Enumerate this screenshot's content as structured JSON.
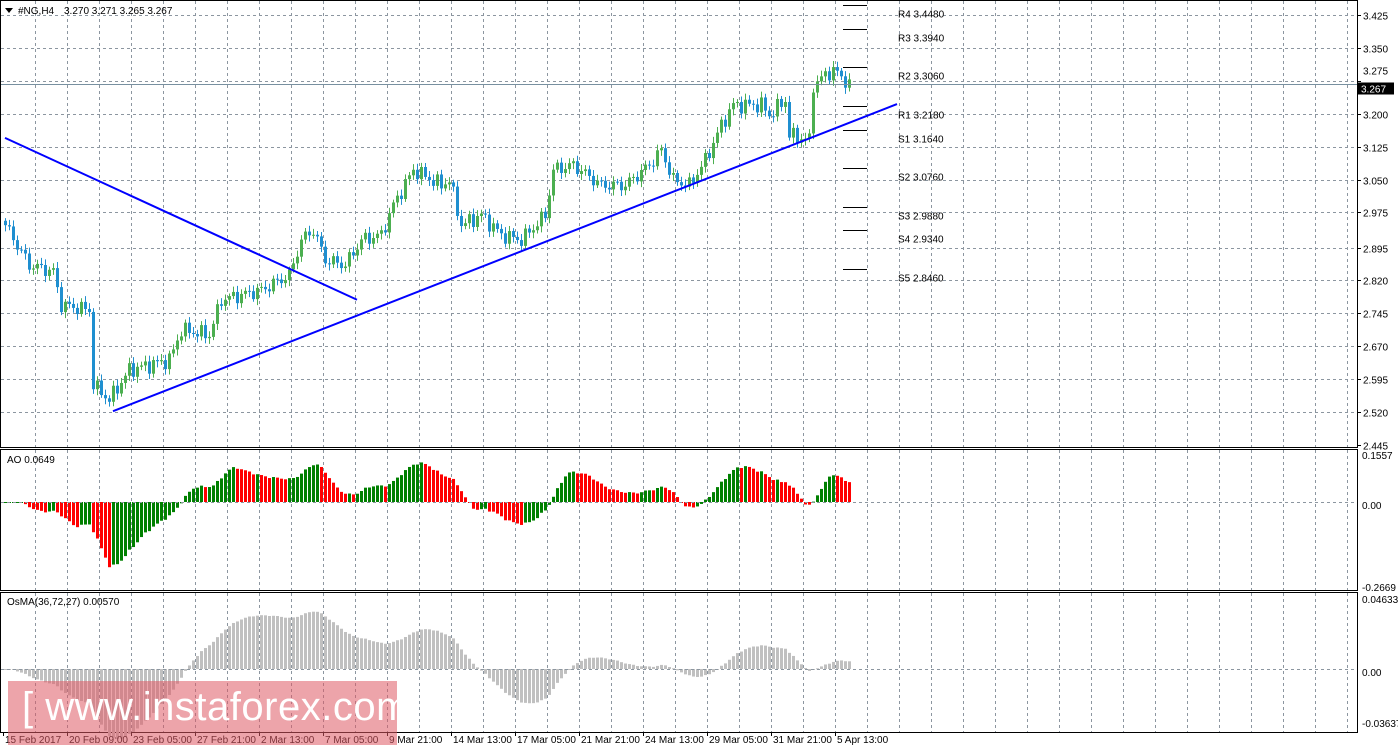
{
  "header": {
    "symbol": "#NG,H4",
    "ohlc": "3.270 3.271 3.265 3.267"
  },
  "colors": {
    "bull": "#4caf50",
    "bear": "#1f8fd0",
    "trendline": "#0000ff",
    "ao_up": "#008000",
    "ao_down": "#ff0000",
    "osma": "#c0c0c0"
  },
  "chart_data": {
    "type": "candlestick",
    "price_axis": {
      "ticks": [
        "3.425",
        "3.350",
        "3.275",
        "3.200",
        "3.125",
        "3.050",
        "2.975",
        "2.895",
        "2.820",
        "2.745",
        "2.670",
        "2.595",
        "2.520",
        "2.445"
      ],
      "ylim": [
        2.445,
        3.425
      ],
      "current": "3.267"
    },
    "x_labels": [
      "15 Feb 2017",
      "20 Feb 09:00",
      "23 Feb 05:00",
      "27 Feb 21:00",
      "2 Mar 13:00",
      "7 Mar 05:00",
      "9 Mar 21:00",
      "14 Mar 13:00",
      "17 Mar 05:00",
      "21 Mar 21:00",
      "24 Mar 13:00",
      "29 Mar 05:00",
      "31 Mar 21:00",
      "5 Apr 13:00"
    ],
    "candle_count": 212,
    "close_anchors": [
      [
        0,
        2.946
      ],
      [
        6,
        2.855
      ],
      [
        12,
        2.84
      ],
      [
        14,
        2.764
      ],
      [
        21,
        2.753
      ],
      [
        22,
        2.582
      ],
      [
        26,
        2.548
      ],
      [
        31,
        2.616
      ],
      [
        41,
        2.639
      ],
      [
        44,
        2.707
      ],
      [
        51,
        2.696
      ],
      [
        54,
        2.776
      ],
      [
        64,
        2.798
      ],
      [
        71,
        2.832
      ],
      [
        74,
        2.912
      ],
      [
        77,
        2.935
      ],
      [
        80,
        2.867
      ],
      [
        85,
        2.855
      ],
      [
        89,
        2.912
      ],
      [
        94,
        2.924
      ],
      [
        97,
        2.992
      ],
      [
        102,
        3.072
      ],
      [
        109,
        3.037
      ],
      [
        111,
        3.049
      ],
      [
        114,
        2.946
      ],
      [
        119,
        2.969
      ],
      [
        124,
        2.924
      ],
      [
        129,
        2.912
      ],
      [
        135,
        2.969
      ],
      [
        137,
        3.072
      ],
      [
        142,
        3.083
      ],
      [
        149,
        3.037
      ],
      [
        155,
        3.037
      ],
      [
        161,
        3.083
      ],
      [
        164,
        3.117
      ],
      [
        167,
        3.049
      ],
      [
        171,
        3.037
      ],
      [
        175,
        3.094
      ],
      [
        179,
        3.174
      ],
      [
        182,
        3.22
      ],
      [
        189,
        3.22
      ],
      [
        191,
        3.197
      ],
      [
        195,
        3.231
      ],
      [
        196,
        3.151
      ],
      [
        201,
        3.14
      ],
      [
        202,
        3.265
      ],
      [
        205,
        3.288
      ],
      [
        207,
        3.3
      ],
      [
        211,
        3.267
      ]
    ],
    "trendlines": [
      {
        "from": [
          0,
          3.145
        ],
        "to": [
          88,
          2.776
        ]
      },
      {
        "from": [
          27,
          2.522
        ],
        "to": [
          223,
          3.222
        ]
      }
    ],
    "pivots": [
      {
        "label": "R4 3.4480",
        "value": 3.448
      },
      {
        "label": "R3 3.3940",
        "value": 3.394
      },
      {
        "label": "R2 3.3060",
        "value": 3.306
      },
      {
        "label": "R1 3.2180",
        "value": 3.218
      },
      {
        "label": "S1 3.1640",
        "value": 3.164
      },
      {
        "label": "S2 3.0760",
        "value": 3.076
      },
      {
        "label": "S3 2.9880",
        "value": 2.988
      },
      {
        "label": "S4 2.9340",
        "value": 2.934
      },
      {
        "label": "S5 2.8460",
        "value": 2.846
      }
    ],
    "ao": {
      "label": "AO 0.0649",
      "ticks": [
        "0.1557",
        "0.00",
        "-0.2669"
      ],
      "ylim": [
        -0.2669,
        0.1557
      ]
    },
    "osma": {
      "label": "OsMA(36,72,27) 0.00570",
      "ticks": [
        "0.04633",
        "0.00",
        "-0.03637"
      ],
      "ylim": [
        -0.03637,
        0.04633
      ]
    }
  },
  "watermark": "[ www.instaforex.com ]"
}
